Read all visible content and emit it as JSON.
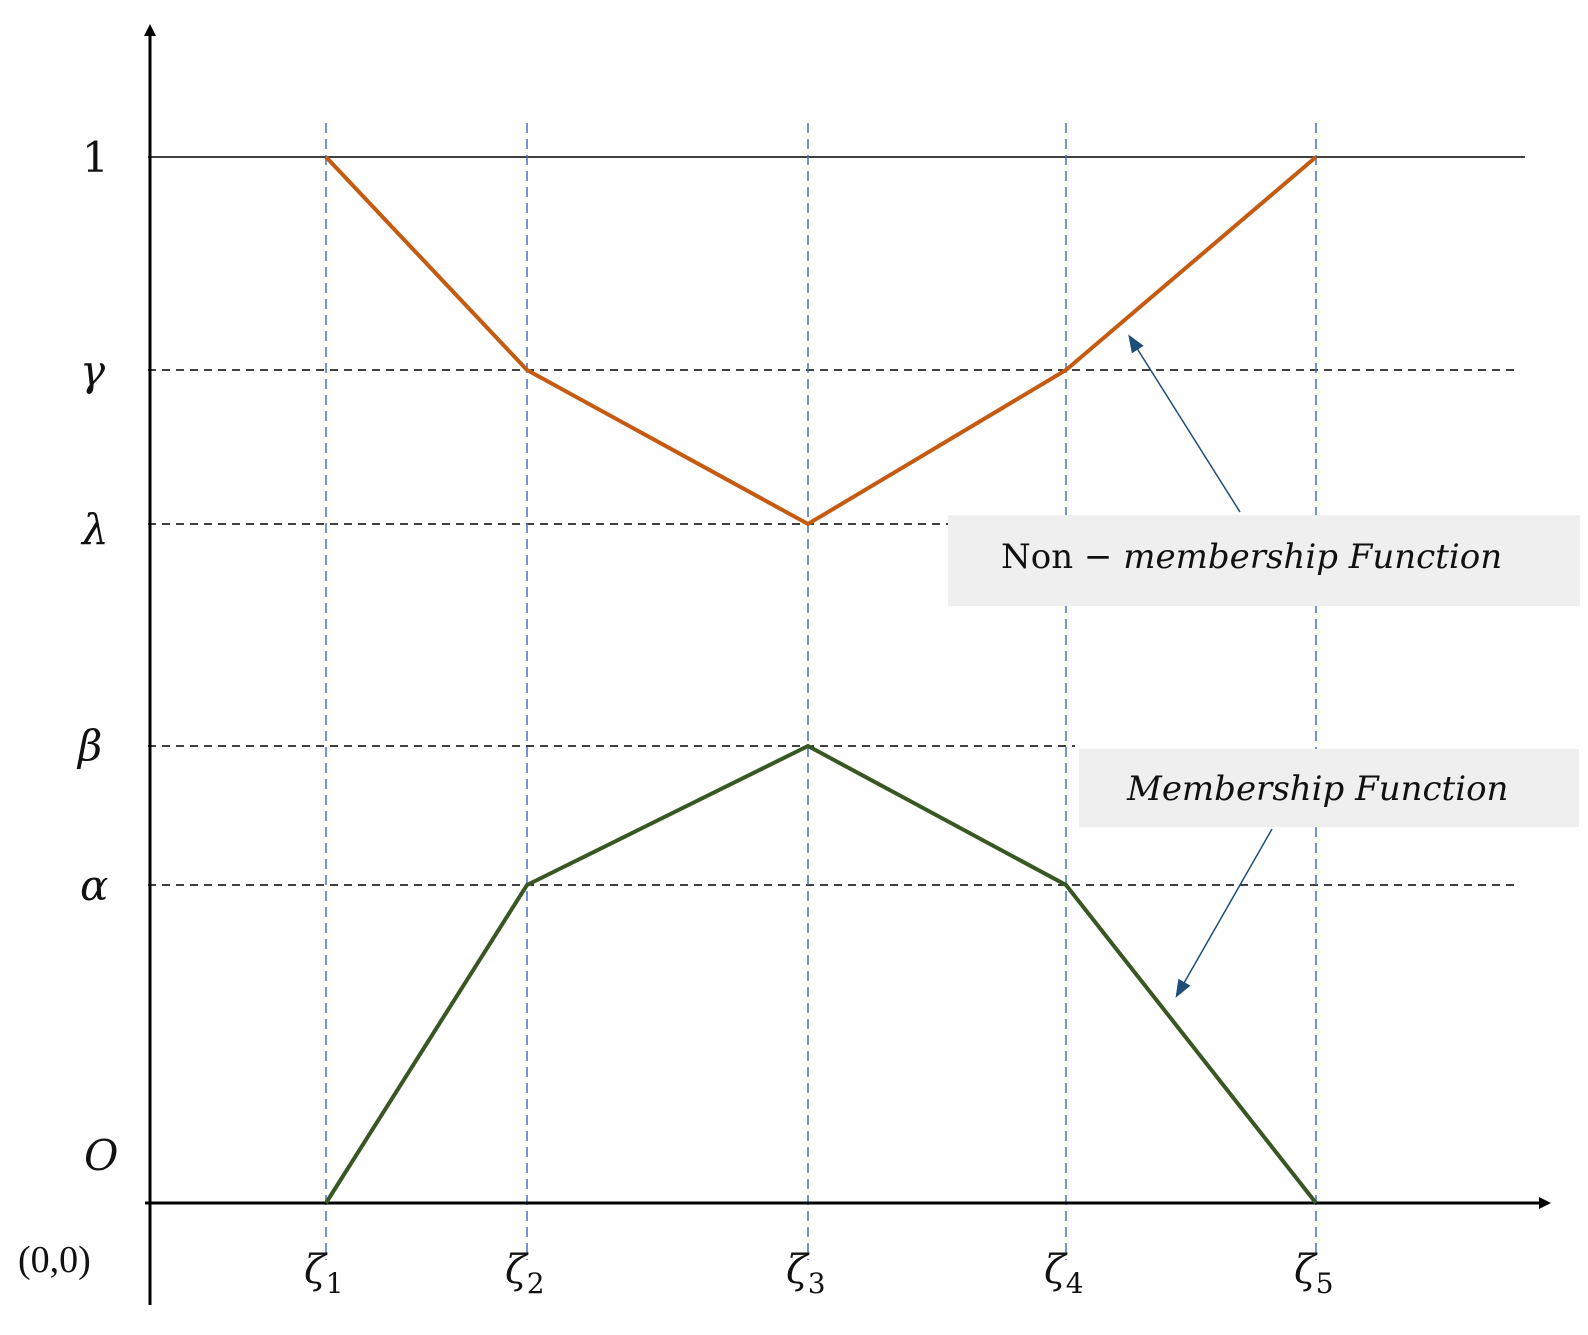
{
  "y_levels": [
    {
      "label": "1"
    },
    {
      "label": "γ"
    },
    {
      "label": "λ"
    },
    {
      "label": "β"
    },
    {
      "label": "α"
    },
    {
      "label": "O"
    }
  ],
  "origin_label": "(0,0)",
  "x_points": [
    {
      "base": "ζ",
      "sub": "1"
    },
    {
      "base": "ζ",
      "sub": "2"
    },
    {
      "base": "ζ",
      "sub": "3"
    },
    {
      "base": "ζ",
      "sub": "4"
    },
    {
      "base": "ζ",
      "sub": "5"
    }
  ],
  "non_membership": {
    "label_prefix": "Non",
    "label_rest": " − membership Function",
    "color": "#c55a11",
    "values": [
      "1",
      "γ",
      "λ",
      "γ",
      "1"
    ]
  },
  "membership": {
    "label": "Membership Function",
    "color": "#385723",
    "values": [
      "O",
      "α",
      "β",
      "α",
      "O"
    ]
  },
  "colors": {
    "axis": "#000000",
    "guide_vertical": "#4472c4",
    "guide_horizontal": "#000000",
    "callout_box": "#efefef",
    "callout_arrow": "#1f4e79"
  }
}
